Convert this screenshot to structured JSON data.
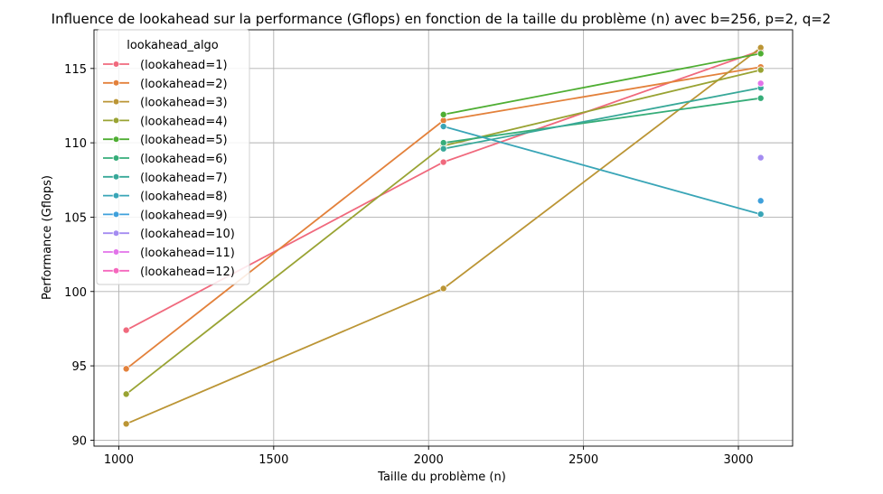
{
  "chart_data": {
    "type": "line",
    "title": "Influence de lookahead sur la performance (Gflops) en fonction de la taille du problème (n) avec b=256, p=2, q=2",
    "xlabel": "Taille du problème (n)",
    "ylabel": "Performance (Gflops)",
    "xlim": [
      920,
      3175
    ],
    "ylim": [
      89.6,
      117.6
    ],
    "xticks": [
      1000,
      1500,
      2000,
      2500,
      3000
    ],
    "yticks": [
      90,
      95,
      100,
      105,
      110,
      115
    ],
    "grid": true,
    "legend_title": "lookahead_algo",
    "legend_position": "top-left",
    "series": [
      {
        "name": " (lookahead=1)",
        "color": "#f0697d",
        "points": [
          [
            1024,
            97.4
          ],
          [
            2048,
            108.7
          ],
          [
            3072,
            116.2
          ]
        ]
      },
      {
        "name": " (lookahead=2)",
        "color": "#e3813b",
        "points": [
          [
            1024,
            94.8
          ],
          [
            2048,
            111.5
          ],
          [
            3072,
            115.1
          ]
        ]
      },
      {
        "name": " (lookahead=3)",
        "color": "#bb9535",
        "points": [
          [
            1024,
            91.1
          ],
          [
            2048,
            100.2
          ],
          [
            3072,
            116.4
          ]
        ]
      },
      {
        "name": " (lookahead=4)",
        "color": "#99a333",
        "points": [
          [
            1024,
            93.1
          ],
          [
            2048,
            109.8
          ],
          [
            3072,
            114.9
          ]
        ]
      },
      {
        "name": " (lookahead=5)",
        "color": "#4fae33",
        "points": [
          [
            2048,
            111.9
          ],
          [
            3072,
            116.0
          ]
        ]
      },
      {
        "name": " (lookahead=6)",
        "color": "#36ad79",
        "points": [
          [
            2048,
            110.0
          ],
          [
            3072,
            113.0
          ]
        ]
      },
      {
        "name": " (lookahead=7)",
        "color": "#38a899",
        "points": [
          [
            2048,
            109.6
          ],
          [
            3072,
            113.7
          ]
        ]
      },
      {
        "name": " (lookahead=8)",
        "color": "#39a5b7",
        "points": [
          [
            2048,
            111.1
          ],
          [
            3072,
            105.2
          ]
        ]
      },
      {
        "name": " (lookahead=9)",
        "color": "#3fa0db",
        "points": [
          [
            3072,
            106.1
          ]
        ]
      },
      {
        "name": " (lookahead=10)",
        "color": "#a48cf1",
        "points": [
          [
            3072,
            109.0
          ]
        ]
      },
      {
        "name": " (lookahead=11)",
        "color": "#e273e9",
        "points": [
          [
            3072,
            114.0
          ]
        ]
      },
      {
        "name": " (lookahead=12)",
        "color": "#f567bd",
        "points": []
      }
    ]
  }
}
